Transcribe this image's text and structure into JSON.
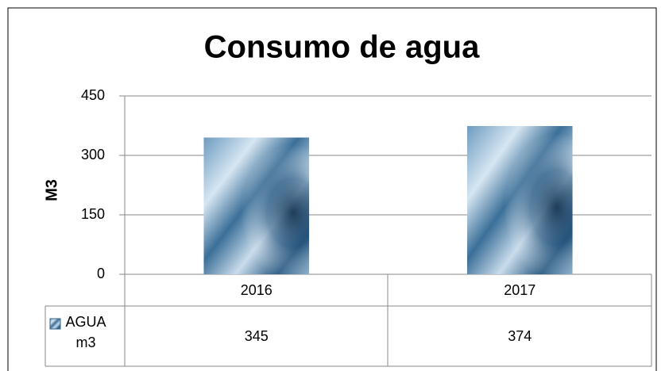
{
  "chart_data": {
    "type": "bar",
    "title": "Consumo de agua",
    "y_label": "M3",
    "categories": [
      "2016",
      "2017"
    ],
    "series": [
      {
        "name": "AGUA m3",
        "color": "#2f5f86",
        "values": [
          345,
          374
        ]
      }
    ],
    "ylim": [
      0,
      450
    ],
    "yticks": [
      0,
      150,
      300,
      450
    ],
    "grid": true,
    "data_table": true
  }
}
